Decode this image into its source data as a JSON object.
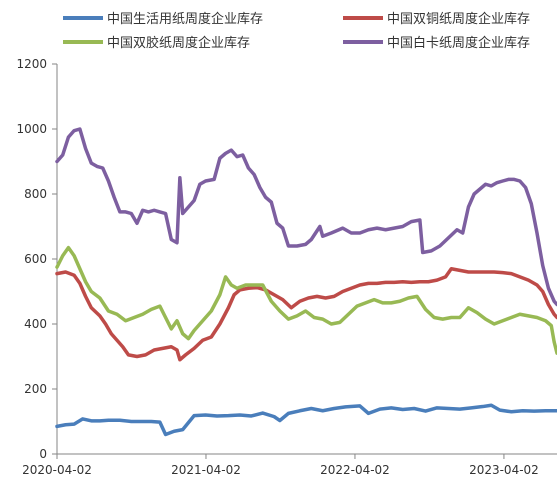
{
  "chart_data": {
    "type": "line",
    "title": "",
    "xlabel": "",
    "ylabel": "",
    "ylim": [
      0,
      1200
    ],
    "yticks": [
      0,
      200,
      400,
      600,
      800,
      1000,
      1200
    ],
    "xlim": [
      "2020-04-02",
      "2023-08-10"
    ],
    "xticks": [
      "2020-04-02",
      "2021-04-02",
      "2022-04-02",
      "2023-04-02"
    ],
    "grid": false,
    "legend_position": "top",
    "series": [
      {
        "name": "中国生活用纸周度企业库存",
        "color": "#4a7ebb",
        "points": [
          [
            "2020-04-02",
            85
          ],
          [
            "2020-04-23",
            90
          ],
          [
            "2020-05-14",
            92
          ],
          [
            "2020-06-04",
            108
          ],
          [
            "2020-06-25",
            102
          ],
          [
            "2020-07-16",
            102
          ],
          [
            "2020-08-06",
            104
          ],
          [
            "2020-09-03",
            104
          ],
          [
            "2020-10-01",
            100
          ],
          [
            "2020-10-29",
            100
          ],
          [
            "2020-11-19",
            100
          ],
          [
            "2020-12-10",
            98
          ],
          [
            "2020-12-24",
            60
          ],
          [
            "2021-01-14",
            70
          ],
          [
            "2021-02-04",
            75
          ],
          [
            "2021-03-04",
            118
          ],
          [
            "2021-04-01",
            120
          ],
          [
            "2021-04-29",
            117
          ],
          [
            "2021-05-27",
            118
          ],
          [
            "2021-06-24",
            120
          ],
          [
            "2021-07-22",
            117
          ],
          [
            "2021-08-19",
            126
          ],
          [
            "2021-09-16",
            115
          ],
          [
            "2021-09-30",
            103
          ],
          [
            "2021-10-21",
            125
          ],
          [
            "2021-11-18",
            133
          ],
          [
            "2021-12-16",
            140
          ],
          [
            "2022-01-13",
            133
          ],
          [
            "2022-02-10",
            140
          ],
          [
            "2022-03-10",
            145
          ],
          [
            "2022-04-14",
            148
          ],
          [
            "2022-05-05",
            125
          ],
          [
            "2022-06-02",
            138
          ],
          [
            "2022-06-30",
            142
          ],
          [
            "2022-07-28",
            137
          ],
          [
            "2022-08-25",
            140
          ],
          [
            "2022-09-22",
            132
          ],
          [
            "2022-10-20",
            142
          ],
          [
            "2022-11-17",
            140
          ],
          [
            "2022-12-15",
            138
          ],
          [
            "2023-01-12",
            142
          ],
          [
            "2023-02-09",
            146
          ],
          [
            "2023-03-02",
            150
          ],
          [
            "2023-03-23",
            135
          ],
          [
            "2023-04-20",
            130
          ],
          [
            "2023-05-18",
            133
          ],
          [
            "2023-06-15",
            132
          ],
          [
            "2023-07-13",
            133
          ],
          [
            "2023-08-10",
            133
          ]
        ]
      },
      {
        "name": "中国双铜纸周度企业库存",
        "color": "#be4b48",
        "points": [
          [
            "2020-04-02",
            555
          ],
          [
            "2020-04-23",
            560
          ],
          [
            "2020-05-14",
            550
          ],
          [
            "2020-05-28",
            525
          ],
          [
            "2020-06-11",
            485
          ],
          [
            "2020-06-25",
            450
          ],
          [
            "2020-07-16",
            425
          ],
          [
            "2020-07-30",
            400
          ],
          [
            "2020-08-13",
            370
          ],
          [
            "2020-08-27",
            350
          ],
          [
            "2020-09-10",
            330
          ],
          [
            "2020-09-24",
            305
          ],
          [
            "2020-10-15",
            300
          ],
          [
            "2020-11-05",
            305
          ],
          [
            "2020-11-26",
            320
          ],
          [
            "2020-12-17",
            325
          ],
          [
            "2021-01-07",
            330
          ],
          [
            "2021-01-21",
            320
          ],
          [
            "2021-01-28",
            290
          ],
          [
            "2021-02-11",
            305
          ],
          [
            "2021-03-04",
            325
          ],
          [
            "2021-03-25",
            350
          ],
          [
            "2021-04-15",
            360
          ],
          [
            "2021-05-06",
            400
          ],
          [
            "2021-05-27",
            450
          ],
          [
            "2021-06-10",
            490
          ],
          [
            "2021-06-24",
            505
          ],
          [
            "2021-07-15",
            510
          ],
          [
            "2021-08-05",
            512
          ],
          [
            "2021-08-26",
            505
          ],
          [
            "2021-09-16",
            490
          ],
          [
            "2021-10-07",
            475
          ],
          [
            "2021-10-28",
            450
          ],
          [
            "2021-11-18",
            470
          ],
          [
            "2021-12-09",
            480
          ],
          [
            "2021-12-30",
            485
          ],
          [
            "2022-01-20",
            480
          ],
          [
            "2022-02-10",
            485
          ],
          [
            "2022-03-03",
            500
          ],
          [
            "2022-03-24",
            510
          ],
          [
            "2022-04-14",
            520
          ],
          [
            "2022-05-05",
            525
          ],
          [
            "2022-05-26",
            525
          ],
          [
            "2022-06-16",
            528
          ],
          [
            "2022-07-07",
            528
          ],
          [
            "2022-07-28",
            530
          ],
          [
            "2022-08-18",
            528
          ],
          [
            "2022-09-08",
            530
          ],
          [
            "2022-09-29",
            530
          ],
          [
            "2022-10-20",
            535
          ],
          [
            "2022-11-10",
            545
          ],
          [
            "2022-11-24",
            570
          ],
          [
            "2022-12-15",
            565
          ],
          [
            "2023-01-05",
            560
          ],
          [
            "2023-01-26",
            560
          ],
          [
            "2023-02-16",
            560
          ],
          [
            "2023-03-09",
            560
          ],
          [
            "2023-03-30",
            558
          ],
          [
            "2023-04-20",
            555
          ],
          [
            "2023-05-11",
            545
          ],
          [
            "2023-06-01",
            535
          ],
          [
            "2023-06-22",
            520
          ],
          [
            "2023-07-06",
            500
          ],
          [
            "2023-07-20",
            460
          ],
          [
            "2023-08-03",
            430
          ],
          [
            "2023-08-10",
            420
          ]
        ]
      },
      {
        "name": "中国双胶纸周度企业库存",
        "color": "#98b954",
        "points": [
          [
            "2020-04-02",
            575
          ],
          [
            "2020-04-16",
            610
          ],
          [
            "2020-04-30",
            635
          ],
          [
            "2020-05-14",
            610
          ],
          [
            "2020-05-28",
            570
          ],
          [
            "2020-06-11",
            530
          ],
          [
            "2020-06-25",
            500
          ],
          [
            "2020-07-16",
            480
          ],
          [
            "2020-08-06",
            440
          ],
          [
            "2020-08-27",
            430
          ],
          [
            "2020-09-17",
            410
          ],
          [
            "2020-10-08",
            420
          ],
          [
            "2020-10-29",
            430
          ],
          [
            "2020-11-19",
            445
          ],
          [
            "2020-12-10",
            455
          ],
          [
            "2020-12-24",
            420
          ],
          [
            "2021-01-07",
            385
          ],
          [
            "2021-01-21",
            410
          ],
          [
            "2021-02-04",
            370
          ],
          [
            "2021-02-18",
            355
          ],
          [
            "2021-03-04",
            380
          ],
          [
            "2021-03-25",
            410
          ],
          [
            "2021-04-15",
            440
          ],
          [
            "2021-05-06",
            490
          ],
          [
            "2021-05-20",
            545
          ],
          [
            "2021-06-03",
            520
          ],
          [
            "2021-06-17",
            510
          ],
          [
            "2021-07-08",
            520
          ],
          [
            "2021-07-29",
            520
          ],
          [
            "2021-08-19",
            520
          ],
          [
            "2021-09-09",
            470
          ],
          [
            "2021-09-30",
            440
          ],
          [
            "2021-10-21",
            415
          ],
          [
            "2021-11-11",
            425
          ],
          [
            "2021-12-02",
            440
          ],
          [
            "2021-12-23",
            420
          ],
          [
            "2022-01-13",
            415
          ],
          [
            "2022-02-03",
            400
          ],
          [
            "2022-02-24",
            405
          ],
          [
            "2022-03-17",
            430
          ],
          [
            "2022-04-07",
            455
          ],
          [
            "2022-04-28",
            465
          ],
          [
            "2022-05-19",
            475
          ],
          [
            "2022-06-09",
            465
          ],
          [
            "2022-06-30",
            465
          ],
          [
            "2022-07-21",
            470
          ],
          [
            "2022-08-11",
            480
          ],
          [
            "2022-09-01",
            485
          ],
          [
            "2022-09-22",
            445
          ],
          [
            "2022-10-13",
            420
          ],
          [
            "2022-11-03",
            415
          ],
          [
            "2022-11-24",
            420
          ],
          [
            "2022-12-15",
            420
          ],
          [
            "2023-01-05",
            450
          ],
          [
            "2023-01-26",
            435
          ],
          [
            "2023-02-16",
            415
          ],
          [
            "2023-03-09",
            400
          ],
          [
            "2023-03-30",
            410
          ],
          [
            "2023-04-20",
            420
          ],
          [
            "2023-05-11",
            430
          ],
          [
            "2023-06-01",
            425
          ],
          [
            "2023-06-22",
            420
          ],
          [
            "2023-07-13",
            410
          ],
          [
            "2023-07-27",
            395
          ],
          [
            "2023-08-03",
            345
          ],
          [
            "2023-08-10",
            310
          ]
        ]
      },
      {
        "name": "中国白卡纸周度企业库存",
        "color": "#7d5fa0",
        "points": [
          [
            "2020-04-02",
            900
          ],
          [
            "2020-04-16",
            920
          ],
          [
            "2020-04-30",
            975
          ],
          [
            "2020-05-14",
            995
          ],
          [
            "2020-05-28",
            1000
          ],
          [
            "2020-06-11",
            940
          ],
          [
            "2020-06-25",
            895
          ],
          [
            "2020-07-09",
            885
          ],
          [
            "2020-07-23",
            880
          ],
          [
            "2020-08-06",
            840
          ],
          [
            "2020-08-20",
            790
          ],
          [
            "2020-09-03",
            745
          ],
          [
            "2020-09-17",
            745
          ],
          [
            "2020-10-01",
            740
          ],
          [
            "2020-10-15",
            710
          ],
          [
            "2020-10-29",
            750
          ],
          [
            "2020-11-12",
            745
          ],
          [
            "2020-11-26",
            750
          ],
          [
            "2020-12-10",
            745
          ],
          [
            "2020-12-24",
            740
          ],
          [
            "2021-01-07",
            660
          ],
          [
            "2021-01-21",
            650
          ],
          [
            "2021-01-28",
            850
          ],
          [
            "2021-02-04",
            740
          ],
          [
            "2021-02-18",
            760
          ],
          [
            "2021-03-04",
            780
          ],
          [
            "2021-03-18",
            830
          ],
          [
            "2021-04-01",
            840
          ],
          [
            "2021-04-22",
            845
          ],
          [
            "2021-05-06",
            910
          ],
          [
            "2021-05-20",
            925
          ],
          [
            "2021-06-03",
            935
          ],
          [
            "2021-06-17",
            915
          ],
          [
            "2021-07-01",
            920
          ],
          [
            "2021-07-15",
            880
          ],
          [
            "2021-07-29",
            860
          ],
          [
            "2021-08-12",
            820
          ],
          [
            "2021-08-26",
            790
          ],
          [
            "2021-09-09",
            775
          ],
          [
            "2021-09-23",
            710
          ],
          [
            "2021-10-07",
            695
          ],
          [
            "2021-10-21",
            640
          ],
          [
            "2021-11-11",
            640
          ],
          [
            "2021-12-02",
            645
          ],
          [
            "2021-12-16",
            660
          ],
          [
            "2022-01-06",
            700
          ],
          [
            "2022-01-13",
            670
          ],
          [
            "2022-02-03",
            680
          ],
          [
            "2022-03-03",
            695
          ],
          [
            "2022-03-24",
            680
          ],
          [
            "2022-04-14",
            680
          ],
          [
            "2022-05-05",
            690
          ],
          [
            "2022-05-26",
            695
          ],
          [
            "2022-06-16",
            690
          ],
          [
            "2022-07-07",
            695
          ],
          [
            "2022-07-28",
            700
          ],
          [
            "2022-08-18",
            715
          ],
          [
            "2022-09-08",
            720
          ],
          [
            "2022-09-15",
            620
          ],
          [
            "2022-10-06",
            625
          ],
          [
            "2022-10-27",
            640
          ],
          [
            "2022-11-17",
            665
          ],
          [
            "2022-12-08",
            690
          ],
          [
            "2022-12-22",
            680
          ],
          [
            "2023-01-05",
            760
          ],
          [
            "2023-01-19",
            800
          ],
          [
            "2023-02-02",
            815
          ],
          [
            "2023-02-16",
            830
          ],
          [
            "2023-03-02",
            825
          ],
          [
            "2023-03-16",
            835
          ],
          [
            "2023-03-30",
            840
          ],
          [
            "2023-04-13",
            845
          ],
          [
            "2023-04-27",
            845
          ],
          [
            "2023-05-11",
            840
          ],
          [
            "2023-05-25",
            820
          ],
          [
            "2023-06-08",
            770
          ],
          [
            "2023-06-22",
            680
          ],
          [
            "2023-07-06",
            580
          ],
          [
            "2023-07-20",
            510
          ],
          [
            "2023-08-03",
            470
          ],
          [
            "2023-08-10",
            460
          ]
        ]
      }
    ]
  }
}
